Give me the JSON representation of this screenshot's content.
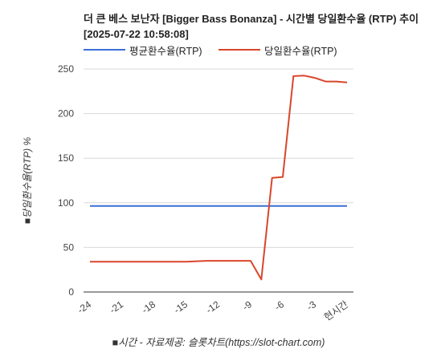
{
  "title": "더 큰 베스 보난자 [Bigger Bass Bonanza] - 시간별 당일환수율 (RTP) 추이 [2025-07-22 10:58:08]",
  "footer": "■시간 - 자료제공: 슬롯차트(https://slot-chart.com)",
  "colors": {
    "average": "#3b6fd4",
    "daily": "#d9462b",
    "grid": "#d9d9d9"
  },
  "chart_data": {
    "type": "line",
    "title": "더 큰 베스 보난자 [Bigger Bass Bonanza] - 시간별 당일환수율 (RTP) 추이 [2025-07-22 10:58:08]",
    "xlabel": "■시간 - 자료제공: 슬롯차트(https://slot-chart.com)",
    "ylabel": "■당일환수율(RTP) %",
    "x_ticks": [
      "-24",
      "-21",
      "-18",
      "-15",
      "-12",
      "-9",
      "-6",
      "-3",
      "현시간"
    ],
    "x_tick_values": [
      -24,
      -21,
      -18,
      -15,
      -12,
      -9,
      -6,
      -3,
      0
    ],
    "xlim": [
      -24,
      0
    ],
    "ylim": [
      0,
      250
    ],
    "y_ticks": [
      0,
      50,
      100,
      150,
      200,
      250
    ],
    "grid": true,
    "legend_position": "top",
    "series": [
      {
        "name": "평균환수율(RTP)",
        "color": "#3b6fd4",
        "x": [
          -24,
          0
        ],
        "y": [
          96.5,
          96.5
        ]
      },
      {
        "name": "당일환수율(RTP)",
        "color": "#d9462b",
        "x": [
          -24,
          -23,
          -22,
          -21,
          -20,
          -19,
          -18,
          -17,
          -16,
          -15,
          -14,
          -13,
          -12,
          -11,
          -10,
          -9,
          -8,
          -7,
          -6,
          -5,
          -4,
          -3,
          -2,
          -1,
          0
        ],
        "y": [
          34,
          34,
          34,
          34,
          34,
          34,
          34,
          34,
          34,
          34,
          34.5,
          35,
          35,
          35,
          35,
          35,
          14,
          128,
          129,
          242,
          242.5,
          240,
          236,
          236,
          235
        ]
      }
    ]
  }
}
